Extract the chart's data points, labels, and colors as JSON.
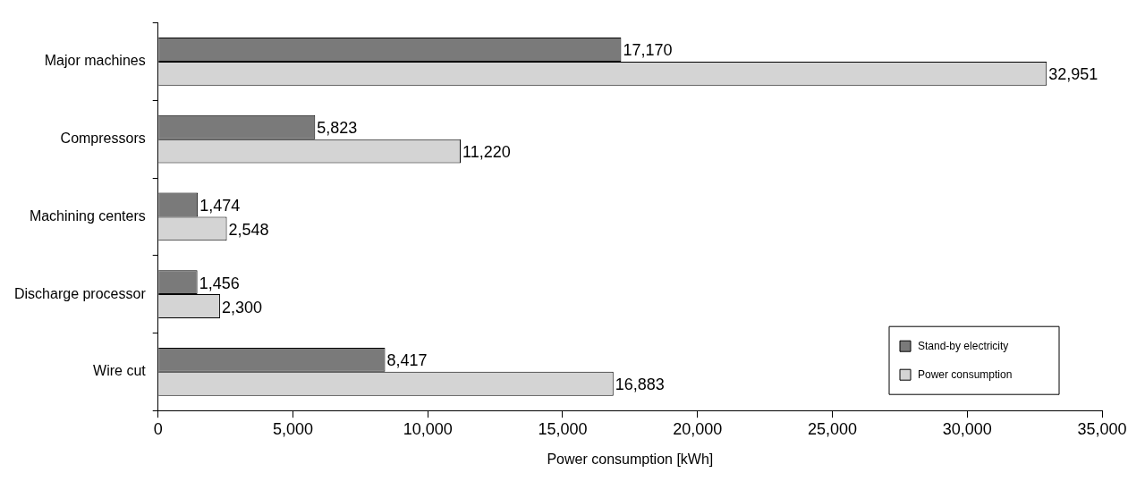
{
  "chart_data": {
    "type": "bar",
    "orientation": "horizontal",
    "xlabel": "Power consumption [kWh]",
    "categories": [
      "Major machines",
      "Compressors",
      "Machining centers",
      "Discharge processor",
      "Wire cut"
    ],
    "series": [
      {
        "name": "Stand-by electricity",
        "color": "#7a7a7a",
        "values": [
          17170,
          5823,
          1474,
          1456,
          8417
        ],
        "value_labels": [
          "17,170",
          "5,823",
          "1,474",
          "1,456",
          "8,417"
        ]
      },
      {
        "name": "Power consumption",
        "color": "#d4d4d4",
        "values": [
          32951,
          11220,
          2548,
          2300,
          16883
        ],
        "value_labels": [
          "32,951",
          "11,220",
          "2,548",
          "2,300",
          "16,883"
        ]
      }
    ],
    "xlim": [
      0,
      35000
    ],
    "xticks": [
      {
        "value": 0,
        "label": "0"
      },
      {
        "value": 5000,
        "label": "5,000"
      },
      {
        "value": 10000,
        "label": "10,000"
      },
      {
        "value": 15000,
        "label": "15,000"
      },
      {
        "value": 20000,
        "label": "20,000"
      },
      {
        "value": 25000,
        "label": "25,000"
      },
      {
        "value": 30000,
        "label": "30,000"
      },
      {
        "value": 35000,
        "label": "35,000"
      }
    ],
    "grid": false,
    "legend": "bottom right"
  }
}
